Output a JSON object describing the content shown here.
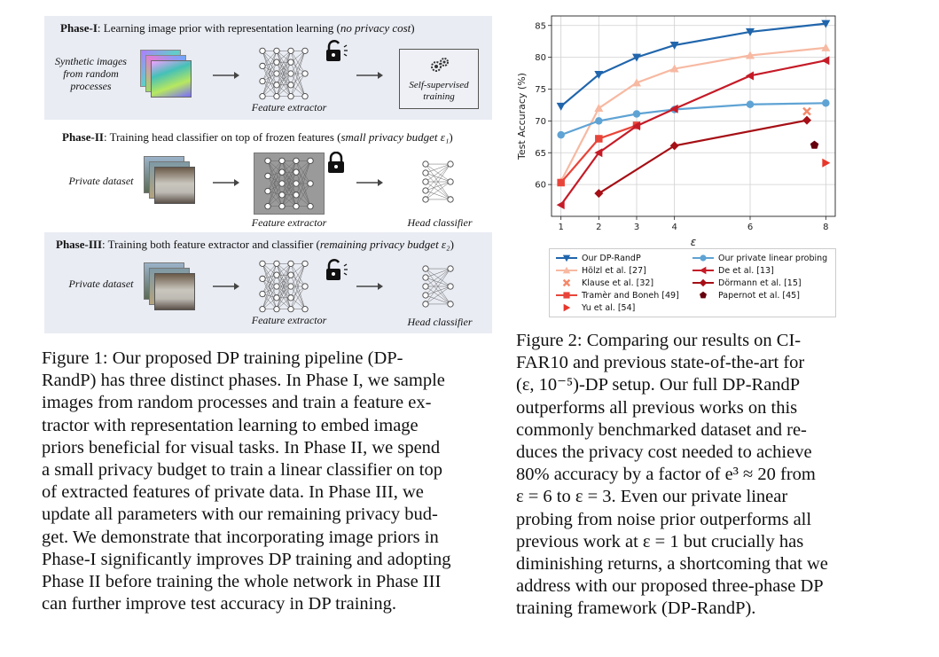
{
  "figure1": {
    "phase1": {
      "title_bold": "Phase-I",
      "title_rest": ": Learning image prior with representation learning (",
      "title_ital": "no privacy cost",
      "title_end": ")",
      "input_label": "Synthetic images from random processes",
      "extractor_label": "Feature extractor",
      "box_label": "Self-supervised training"
    },
    "phase2": {
      "title_bold": "Phase-II",
      "title_rest": ": Training head classifier on top of frozen features (",
      "title_ital": "small privacy budget ε₁",
      "title_end": ")",
      "input_label": "Private dataset",
      "extractor_label": "Feature extractor",
      "head_label": "Head classifier"
    },
    "phase3": {
      "title_bold": "Phase-III",
      "title_rest": ": Training both feature extractor and classifier (",
      "title_ital": "remaining privacy budget ε₂",
      "title_end": ")",
      "input_label": "Private dataset",
      "extractor_label": "Feature extractor",
      "head_label": "Head classifier"
    },
    "caption_lines": [
      "Figure 1:  Our proposed DP training pipeline (DP-",
      "RandP) has three distinct phases. In Phase I, we sample",
      "images from random processes and train a feature ex-",
      "tractor with representation learning to embed image",
      "priors beneficial for visual tasks. In Phase II, we spend",
      "a small privacy budget to train a linear classifier on top",
      "of extracted features of private data. In Phase III, we",
      "update all parameters with our remaining privacy bud-",
      "get. We demonstrate that incorporating image priors in",
      "Phase-I significantly improves DP training and adopting",
      "Phase II before training the whole network in Phase III",
      "can further improve test accuracy in DP training."
    ]
  },
  "figure2": {
    "caption_lines": [
      "Figure 2: Comparing our results on CI-",
      "FAR10 and previous state-of-the-art for",
      "(ε, 10⁻⁵)-DP setup. Our full DP-RandP",
      "outperforms all previous works on this",
      "commonly benchmarked dataset and re-",
      "duces the privacy cost needed to achieve",
      "80% accuracy by a factor of e³ ≈ 20 from",
      "ε = 6 to ε = 3. Even our private linear",
      "probing from noise prior outperforms all",
      "previous work at ε = 1 but crucially has",
      "diminishing returns, a shortcoming that we",
      "address with our proposed three-phase DP",
      "training framework (DP-RandP)."
    ]
  },
  "chart_data": {
    "type": "line",
    "xlabel": "ε",
    "ylabel": "Test Accuracy (%)",
    "xlim": [
      0.75,
      8.25
    ],
    "ylim": [
      55,
      86.5
    ],
    "xticks": [
      1,
      2,
      3,
      4,
      6,
      8
    ],
    "yticks": [
      60,
      65,
      70,
      75,
      80,
      85
    ],
    "grid": true,
    "legend_position": "below",
    "series": [
      {
        "name": "Our DP-RandP",
        "color": "#2166ac",
        "marker": "tri-down",
        "line": true,
        "points": [
          [
            1,
            72.3
          ],
          [
            2,
            77.3
          ],
          [
            3,
            80.0
          ],
          [
            4,
            81.9
          ],
          [
            6,
            84.0
          ],
          [
            8,
            85.3
          ]
        ]
      },
      {
        "name": "Hölzl et al. [27]",
        "color": "#f7b9a2",
        "marker": "tri-up",
        "line": true,
        "points": [
          [
            1,
            60.5
          ],
          [
            2,
            72.0
          ],
          [
            3,
            76.0
          ],
          [
            4,
            78.2
          ],
          [
            6,
            80.3
          ],
          [
            8,
            81.5
          ]
        ]
      },
      {
        "name": "Klause et al. [32]",
        "color": "#f4896b",
        "marker": "x",
        "line": false,
        "points": [
          [
            7.5,
            71.5
          ]
        ]
      },
      {
        "name": "Tramèr and Boneh [49]",
        "color": "#e8453a",
        "marker": "square",
        "line": true,
        "points": [
          [
            1,
            60.3
          ],
          [
            2,
            67.2
          ],
          [
            3,
            69.3
          ]
        ]
      },
      {
        "name": "Yu et al. [54]",
        "color": "#e8362a",
        "marker": "tri-right",
        "line": false,
        "points": [
          [
            8,
            63.4
          ]
        ]
      },
      {
        "name": "Our private linear probing",
        "color": "#5fa3d4",
        "marker": "circle",
        "line": true,
        "points": [
          [
            1,
            67.8
          ],
          [
            2,
            70.0
          ],
          [
            3,
            71.1
          ],
          [
            4,
            71.8
          ],
          [
            6,
            72.6
          ],
          [
            8,
            72.8
          ]
        ]
      },
      {
        "name": "De et al. [13]",
        "color": "#c51b27",
        "marker": "tri-left",
        "line": true,
        "points": [
          [
            1,
            56.8
          ],
          [
            2,
            65.0
          ],
          [
            3,
            69.2
          ],
          [
            4,
            71.9
          ],
          [
            6,
            77.1
          ],
          [
            8,
            79.5
          ]
        ]
      },
      {
        "name": "Dörmann et al. [15]",
        "color": "#a50f15",
        "marker": "diamond",
        "line": true,
        "points": [
          [
            2,
            58.6
          ],
          [
            4,
            66.1
          ],
          [
            7.5,
            70.1
          ]
        ]
      },
      {
        "name": "Papernot et al. [45]",
        "color": "#67000d",
        "marker": "pentagon",
        "line": false,
        "points": [
          [
            7.7,
            66.2
          ]
        ]
      }
    ]
  }
}
